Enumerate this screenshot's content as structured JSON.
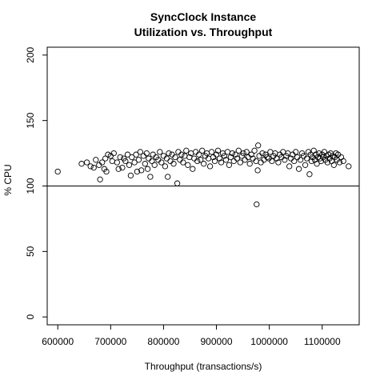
{
  "chart_data": {
    "type": "scatter",
    "title": "SyncClock Instance",
    "subtitle": "Utilization vs. Throughput",
    "xlabel": "Throughput (transactions/s)",
    "ylabel": "% CPU",
    "xlim": [
      580000,
      1170000
    ],
    "ylim": [
      -6,
      206
    ],
    "x_ticks": [
      600000,
      700000,
      800000,
      900000,
      1000000,
      1100000
    ],
    "y_ticks": [
      0,
      50,
      100,
      150,
      200
    ],
    "reference_line": {
      "orientation": "horizontal",
      "y": 100
    },
    "marker": "open-circle",
    "grid": false,
    "legend": "none",
    "points": [
      {
        "x": 600000,
        "y": 111
      },
      {
        "x": 645000,
        "y": 117
      },
      {
        "x": 655000,
        "y": 118
      },
      {
        "x": 662000,
        "y": 115
      },
      {
        "x": 668000,
        "y": 114
      },
      {
        "x": 672000,
        "y": 120
      },
      {
        "x": 678000,
        "y": 116
      },
      {
        "x": 680000,
        "y": 105
      },
      {
        "x": 684000,
        "y": 118
      },
      {
        "x": 688000,
        "y": 113
      },
      {
        "x": 690000,
        "y": 121
      },
      {
        "x": 692000,
        "y": 111
      },
      {
        "x": 695000,
        "y": 124
      },
      {
        "x": 700000,
        "y": 123
      },
      {
        "x": 703000,
        "y": 119
      },
      {
        "x": 706000,
        "y": 125
      },
      {
        "x": 712000,
        "y": 118
      },
      {
        "x": 715000,
        "y": 113
      },
      {
        "x": 718000,
        "y": 122
      },
      {
        "x": 722000,
        "y": 114
      },
      {
        "x": 725000,
        "y": 121
      },
      {
        "x": 728000,
        "y": 119
      },
      {
        "x": 732000,
        "y": 124
      },
      {
        "x": 735000,
        "y": 116
      },
      {
        "x": 738000,
        "y": 108
      },
      {
        "x": 740000,
        "y": 122
      },
      {
        "x": 745000,
        "y": 118
      },
      {
        "x": 748000,
        "y": 124
      },
      {
        "x": 750000,
        "y": 111
      },
      {
        "x": 753000,
        "y": 120
      },
      {
        "x": 756000,
        "y": 126
      },
      {
        "x": 758000,
        "y": 112
      },
      {
        "x": 762000,
        "y": 123
      },
      {
        "x": 765000,
        "y": 117
      },
      {
        "x": 768000,
        "y": 125
      },
      {
        "x": 770000,
        "y": 113
      },
      {
        "x": 772000,
        "y": 121
      },
      {
        "x": 775000,
        "y": 107
      },
      {
        "x": 778000,
        "y": 119
      },
      {
        "x": 780000,
        "y": 124
      },
      {
        "x": 783000,
        "y": 116
      },
      {
        "x": 786000,
        "y": 122
      },
      {
        "x": 790000,
        "y": 120
      },
      {
        "x": 793000,
        "y": 126
      },
      {
        "x": 796000,
        "y": 118
      },
      {
        "x": 800000,
        "y": 123
      },
      {
        "x": 803000,
        "y": 115
      },
      {
        "x": 806000,
        "y": 121
      },
      {
        "x": 808000,
        "y": 107
      },
      {
        "x": 810000,
        "y": 125
      },
      {
        "x": 813000,
        "y": 119
      },
      {
        "x": 816000,
        "y": 124
      },
      {
        "x": 819000,
        "y": 117
      },
      {
        "x": 822000,
        "y": 122
      },
      {
        "x": 826000,
        "y": 102
      },
      {
        "x": 828000,
        "y": 126
      },
      {
        "x": 831000,
        "y": 120
      },
      {
        "x": 834000,
        "y": 124
      },
      {
        "x": 837000,
        "y": 118
      },
      {
        "x": 840000,
        "y": 123
      },
      {
        "x": 843000,
        "y": 127
      },
      {
        "x": 846000,
        "y": 116
      },
      {
        "x": 849000,
        "y": 122
      },
      {
        "x": 852000,
        "y": 125
      },
      {
        "x": 855000,
        "y": 113
      },
      {
        "x": 858000,
        "y": 121
      },
      {
        "x": 861000,
        "y": 126
      },
      {
        "x": 864000,
        "y": 119
      },
      {
        "x": 867000,
        "y": 124
      },
      {
        "x": 870000,
        "y": 120
      },
      {
        "x": 873000,
        "y": 127
      },
      {
        "x": 876000,
        "y": 117
      },
      {
        "x": 879000,
        "y": 123
      },
      {
        "x": 882000,
        "y": 125
      },
      {
        "x": 885000,
        "y": 121
      },
      {
        "x": 888000,
        "y": 115
      },
      {
        "x": 891000,
        "y": 126
      },
      {
        "x": 894000,
        "y": 122
      },
      {
        "x": 897000,
        "y": 119
      },
      {
        "x": 900000,
        "y": 124
      },
      {
        "x": 903000,
        "y": 127
      },
      {
        "x": 906000,
        "y": 121
      },
      {
        "x": 909000,
        "y": 118
      },
      {
        "x": 912000,
        "y": 125
      },
      {
        "x": 915000,
        "y": 123
      },
      {
        "x": 918000,
        "y": 120
      },
      {
        "x": 921000,
        "y": 126
      },
      {
        "x": 924000,
        "y": 116
      },
      {
        "x": 927000,
        "y": 122
      },
      {
        "x": 930000,
        "y": 125
      },
      {
        "x": 933000,
        "y": 119
      },
      {
        "x": 936000,
        "y": 124
      },
      {
        "x": 939000,
        "y": 121
      },
      {
        "x": 942000,
        "y": 127
      },
      {
        "x": 945000,
        "y": 118
      },
      {
        "x": 948000,
        "y": 123
      },
      {
        "x": 951000,
        "y": 125
      },
      {
        "x": 954000,
        "y": 120
      },
      {
        "x": 957000,
        "y": 126
      },
      {
        "x": 960000,
        "y": 122
      },
      {
        "x": 963000,
        "y": 117
      },
      {
        "x": 966000,
        "y": 124
      },
      {
        "x": 969000,
        "y": 121
      },
      {
        "x": 972000,
        "y": 127
      },
      {
        "x": 975000,
        "y": 119
      },
      {
        "x": 976000,
        "y": 86
      },
      {
        "x": 978000,
        "y": 112
      },
      {
        "x": 979000,
        "y": 131
      },
      {
        "x": 981000,
        "y": 123
      },
      {
        "x": 984000,
        "y": 118
      },
      {
        "x": 987000,
        "y": 125
      },
      {
        "x": 990000,
        "y": 120
      },
      {
        "x": 993000,
        "y": 124
      },
      {
        "x": 996000,
        "y": 122
      },
      {
        "x": 999000,
        "y": 121
      },
      {
        "x": 1002000,
        "y": 126
      },
      {
        "x": 1005000,
        "y": 119
      },
      {
        "x": 1008000,
        "y": 123
      },
      {
        "x": 1011000,
        "y": 125
      },
      {
        "x": 1014000,
        "y": 121
      },
      {
        "x": 1017000,
        "y": 118
      },
      {
        "x": 1020000,
        "y": 124
      },
      {
        "x": 1023000,
        "y": 122
      },
      {
        "x": 1026000,
        "y": 126
      },
      {
        "x": 1029000,
        "y": 120
      },
      {
        "x": 1032000,
        "y": 123
      },
      {
        "x": 1035000,
        "y": 125
      },
      {
        "x": 1038000,
        "y": 115
      },
      {
        "x": 1041000,
        "y": 121
      },
      {
        "x": 1044000,
        "y": 124
      },
      {
        "x": 1047000,
        "y": 119
      },
      {
        "x": 1050000,
        "y": 126
      },
      {
        "x": 1053000,
        "y": 122
      },
      {
        "x": 1056000,
        "y": 113
      },
      {
        "x": 1059000,
        "y": 120
      },
      {
        "x": 1062000,
        "y": 125
      },
      {
        "x": 1065000,
        "y": 123
      },
      {
        "x": 1068000,
        "y": 116
      },
      {
        "x": 1071000,
        "y": 121
      },
      {
        "x": 1074000,
        "y": 126
      },
      {
        "x": 1076000,
        "y": 109
      },
      {
        "x": 1078000,
        "y": 124
      },
      {
        "x": 1080000,
        "y": 119
      },
      {
        "x": 1082000,
        "y": 122
      },
      {
        "x": 1084000,
        "y": 127
      },
      {
        "x": 1086000,
        "y": 120
      },
      {
        "x": 1088000,
        "y": 124
      },
      {
        "x": 1090000,
        "y": 117
      },
      {
        "x": 1092000,
        "y": 122
      },
      {
        "x": 1094000,
        "y": 125
      },
      {
        "x": 1096000,
        "y": 121
      },
      {
        "x": 1098000,
        "y": 119
      },
      {
        "x": 1100000,
        "y": 124
      },
      {
        "x": 1102000,
        "y": 122
      },
      {
        "x": 1104000,
        "y": 126
      },
      {
        "x": 1106000,
        "y": 120
      },
      {
        "x": 1108000,
        "y": 123
      },
      {
        "x": 1110000,
        "y": 118
      },
      {
        "x": 1112000,
        "y": 124
      },
      {
        "x": 1114000,
        "y": 121
      },
      {
        "x": 1116000,
        "y": 125
      },
      {
        "x": 1118000,
        "y": 119
      },
      {
        "x": 1120000,
        "y": 123
      },
      {
        "x": 1122000,
        "y": 116
      },
      {
        "x": 1124000,
        "y": 122
      },
      {
        "x": 1126000,
        "y": 125
      },
      {
        "x": 1128000,
        "y": 120
      },
      {
        "x": 1130000,
        "y": 124
      },
      {
        "x": 1133000,
        "y": 118
      },
      {
        "x": 1136000,
        "y": 122
      },
      {
        "x": 1140000,
        "y": 119
      },
      {
        "x": 1150000,
        "y": 115
      }
    ]
  }
}
